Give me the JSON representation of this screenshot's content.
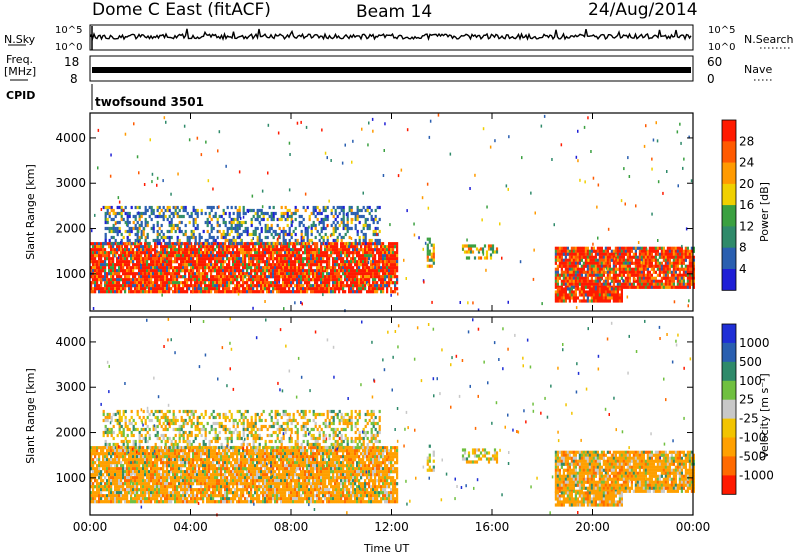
{
  "header": {
    "station": "Dome C East (fitACF)",
    "beam": "Beam 14",
    "date": "24/Aug/2014"
  },
  "panels": {
    "nsky_label": "N.Sky",
    "nsky_ticks": [
      "10^5",
      "10^0"
    ],
    "nsearch_ticks": [
      "10^5",
      "10^0"
    ],
    "nsearch_label": "N.Search",
    "freq_label_1": "Freq.",
    "freq_label_2": "[MHz]",
    "freq_ticks": [
      "18",
      "8"
    ],
    "nave_ticks": [
      "60",
      "0"
    ],
    "nave_label": "Nave",
    "cpid_label": "CPID",
    "cpid_value": "twofsound 3501"
  },
  "colors": {
    "power": [
      "#1f1fd6",
      "#2a5fb0",
      "#2f8a6a",
      "#3aa040",
      "#f0d000",
      "#ff9a00",
      "#ff5a00",
      "#ff1a00"
    ],
    "velocity": [
      "#ff1a00",
      "#ff6a00",
      "#ffa000",
      "#f2c400",
      "#c8c8c8",
      "#70c040",
      "#2f8a6a",
      "#2a5fb0",
      "#1f2fd6"
    ]
  },
  "chart_data": [
    {
      "type": "heatmap",
      "title": "",
      "quantity": "Power",
      "ylabel": "Slant Range [km]",
      "xlabel": "Time UT",
      "xticks": [
        "00:00",
        "04:00",
        "08:00",
        "12:00",
        "16:00",
        "20:00",
        "00:00"
      ],
      "yticks": [
        "1000",
        "2000",
        "3000",
        "4000"
      ],
      "xlim_hours": [
        0,
        24
      ],
      "ylim_km": [
        180,
        4550
      ],
      "colorbar": {
        "label": "Power [dB]",
        "ticks": [
          "4",
          "8",
          "12",
          "16",
          "20",
          "24",
          "28"
        ]
      },
      "regions": [
        {
          "t0": 0.0,
          "t1": 12.2,
          "r0": 600,
          "r1": 1700,
          "level": "high"
        },
        {
          "t0": 0.5,
          "t1": 11.5,
          "r0": 1700,
          "r1": 2500,
          "level": "low"
        },
        {
          "t0": 13.4,
          "t1": 13.7,
          "r0": 1200,
          "r1": 1800,
          "level": "mid"
        },
        {
          "t0": 14.8,
          "t1": 16.2,
          "r0": 1350,
          "r1": 1650,
          "level": "mid"
        },
        {
          "t0": 18.5,
          "t1": 24.0,
          "r0": 700,
          "r1": 1600,
          "level": "high"
        },
        {
          "t0": 18.5,
          "t1": 21.2,
          "r0": 380,
          "r1": 700,
          "level": "high"
        }
      ]
    },
    {
      "type": "heatmap",
      "title": "",
      "quantity": "Velocity",
      "ylabel": "Slant Range [km]",
      "xlabel": "Time UT",
      "xticks": [
        "00:00",
        "04:00",
        "08:00",
        "12:00",
        "16:00",
        "20:00",
        "00:00"
      ],
      "yticks": [
        "1000",
        "2000",
        "3000",
        "4000"
      ],
      "xlim_hours": [
        0,
        24
      ],
      "ylim_km": [
        180,
        4550
      ],
      "colorbar": {
        "label": "Velocity [m s⁻¹]",
        "ticks": [
          "1000",
          "500",
          "100",
          "25",
          "-25",
          "-100",
          "-500",
          "-1000"
        ]
      },
      "regions": [
        {
          "t0": 0.0,
          "t1": 12.2,
          "r0": 500,
          "r1": 1700,
          "level": "negative"
        },
        {
          "t0": 0.5,
          "t1": 11.5,
          "r0": 1700,
          "r1": 2500,
          "level": "mixed"
        },
        {
          "t0": 13.4,
          "t1": 13.7,
          "r0": 1200,
          "r1": 1800,
          "level": "mixed"
        },
        {
          "t0": 14.8,
          "t1": 16.2,
          "r0": 1350,
          "r1": 1650,
          "level": "mixed"
        },
        {
          "t0": 18.5,
          "t1": 24.0,
          "r0": 700,
          "r1": 1600,
          "level": "negative"
        },
        {
          "t0": 18.5,
          "t1": 21.2,
          "r0": 380,
          "r1": 700,
          "level": "negative"
        }
      ]
    }
  ]
}
